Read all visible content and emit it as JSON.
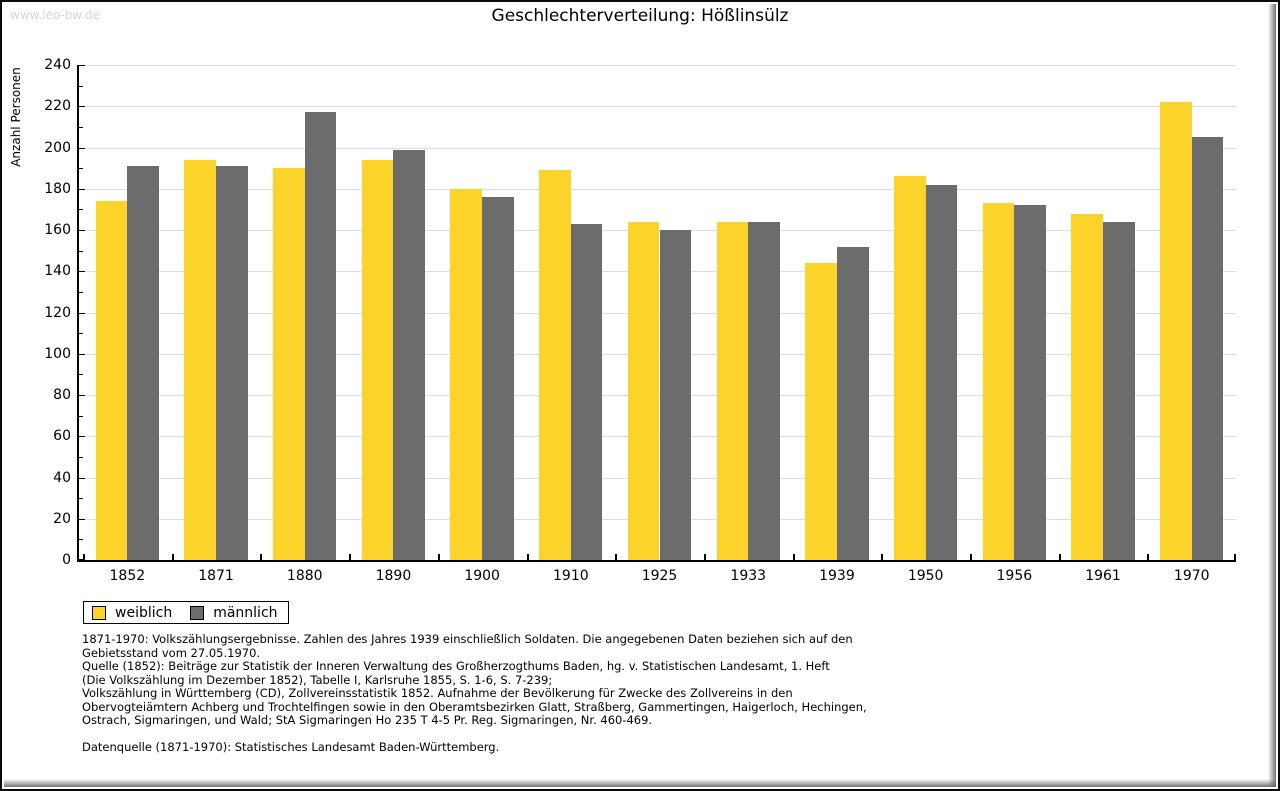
{
  "watermark": "www.leo-bw.de",
  "footnotes": "1871-1970: Volkszählungsergebnisse. Zahlen des Jahres 1939 einschließlich Soldaten. Die angegebenen Daten beziehen sich auf den\nGebietsstand vom 27.05.1970.\nQuelle (1852): Beiträge zur Statistik der Inneren Verwaltung des Großherzogthums Baden, hg. v. Statistischen Landesamt, 1. Heft\n(Die Volkszählung im Dezember 1852), Tabelle I, Karlsruhe 1855, S. 1-6, S. 7-239;\nVolkszählung in Württemberg (CD), Zollvereinsstatistik 1852. Aufnahme der Bevölkerung für Zwecke des Zollvereins in den\nObervogteiämtern Achberg und Trochtelfingen sowie in den Oberamtsbezirken Glatt, Straßberg, Gammertingen, Haigerloch, Hechingen,\nOstrach, Sigmaringen, und Wald; StA Sigmaringen Ho 235 T 4-5 Pr. Reg. Sigmaringen, Nr. 460-469.\n\nDatenquelle (1871-1970): Statistisches Landesamt Baden-Württemberg.",
  "chart_data": {
    "type": "bar",
    "title": "Geschlechterverteilung: Hößlinsülz",
    "ylabel": "Anzahl Personen",
    "xlabel": "",
    "categories": [
      "1852",
      "1871",
      "1880",
      "1890",
      "1900",
      "1910",
      "1925",
      "1933",
      "1939",
      "1950",
      "1956",
      "1961",
      "1970"
    ],
    "series": [
      {
        "name": "weiblich",
        "color": "#fcd32b",
        "values": [
          174,
          194,
          190,
          194,
          180,
          189,
          164,
          164,
          144,
          186,
          173,
          168,
          222
        ]
      },
      {
        "name": "männlich",
        "color": "#6c6c6c",
        "values": [
          191,
          191,
          217,
          199,
          176,
          163,
          160,
          164,
          152,
          182,
          172,
          164,
          205
        ]
      }
    ],
    "ylim": [
      0,
      240
    ],
    "ytick_step": 20,
    "minor_tick_step": 10,
    "grid": true,
    "gridline_color": "#dcdcdc",
    "legend_position": "bottom-left"
  }
}
